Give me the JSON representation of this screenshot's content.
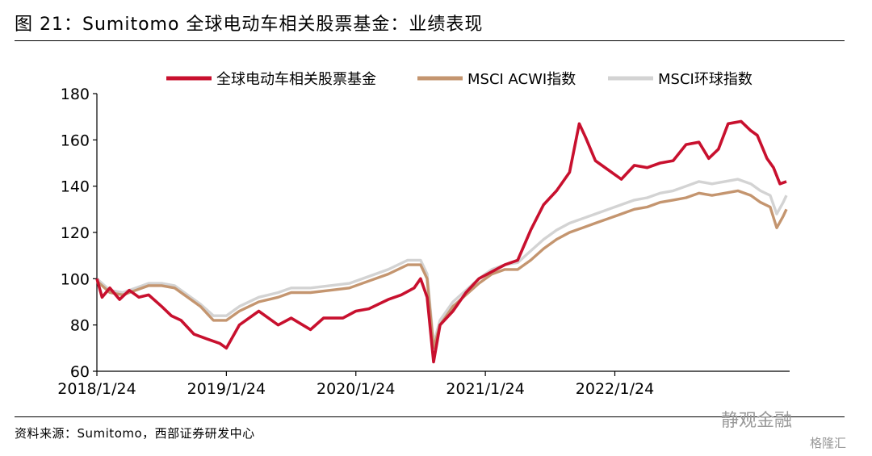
{
  "figure": {
    "title": "图 21：Sumitomo 全球电动车相关股票基金：业绩表现",
    "source": "资料来源：Sumitomo，西部证券研发中心",
    "watermark": "静观金融",
    "watermark2": "格隆汇"
  },
  "chart_data": {
    "type": "line",
    "x_ticks": [
      "2018/1/24",
      "2019/1/24",
      "2020/1/24",
      "2021/1/24",
      "2022/1/24"
    ],
    "y_ticks": [
      "60",
      "80",
      "100",
      "120",
      "140",
      "160",
      "180"
    ],
    "ylim": [
      60,
      180
    ],
    "legend_position": "top",
    "series": [
      {
        "name": "全球电动车相关股票基金",
        "color": "#c8102e",
        "values": [
          [
            0,
            100
          ],
          [
            0.08,
            92
          ],
          [
            0.2,
            96
          ],
          [
            0.35,
            91
          ],
          [
            0.5,
            95
          ],
          [
            0.65,
            92
          ],
          [
            0.8,
            93
          ],
          [
            1.0,
            88
          ],
          [
            1.15,
            84
          ],
          [
            1.3,
            82
          ],
          [
            1.5,
            76
          ],
          [
            1.7,
            74
          ],
          [
            1.9,
            72
          ],
          [
            2.0,
            70
          ],
          [
            2.2,
            80
          ],
          [
            2.5,
            86
          ],
          [
            2.8,
            80
          ],
          [
            3.0,
            83
          ],
          [
            3.3,
            78
          ],
          [
            3.5,
            83
          ],
          [
            3.8,
            83
          ],
          [
            4.0,
            86
          ],
          [
            4.2,
            87
          ],
          [
            4.5,
            91
          ],
          [
            4.7,
            93
          ],
          [
            4.9,
            96
          ],
          [
            5.0,
            100
          ],
          [
            5.1,
            92
          ],
          [
            5.2,
            64
          ],
          [
            5.3,
            80
          ],
          [
            5.5,
            86
          ],
          [
            5.7,
            94
          ],
          [
            5.9,
            100
          ],
          [
            6.1,
            103
          ],
          [
            6.3,
            106
          ],
          [
            6.5,
            108
          ],
          [
            6.7,
            121
          ],
          [
            6.9,
            132
          ],
          [
            7.1,
            138
          ],
          [
            7.3,
            146
          ],
          [
            7.45,
            167
          ],
          [
            7.55,
            161
          ],
          [
            7.7,
            151
          ],
          [
            7.9,
            147
          ],
          [
            8.1,
            143
          ],
          [
            8.3,
            149
          ],
          [
            8.5,
            148
          ],
          [
            8.7,
            150
          ],
          [
            8.9,
            151
          ],
          [
            9.1,
            158
          ],
          [
            9.3,
            159
          ],
          [
            9.45,
            152
          ],
          [
            9.6,
            156
          ],
          [
            9.75,
            167
          ],
          [
            9.95,
            168
          ],
          [
            10.1,
            164
          ],
          [
            10.2,
            162
          ],
          [
            10.35,
            152
          ],
          [
            10.45,
            148
          ],
          [
            10.55,
            141
          ],
          [
            10.65,
            142
          ]
        ]
      },
      {
        "name": "MSCI ACWI指数",
        "color": "#c4956f",
        "values": [
          [
            0,
            99
          ],
          [
            0.2,
            94
          ],
          [
            0.4,
            93
          ],
          [
            0.6,
            95
          ],
          [
            0.8,
            97
          ],
          [
            1.0,
            97
          ],
          [
            1.2,
            96
          ],
          [
            1.4,
            92
          ],
          [
            1.6,
            88
          ],
          [
            1.8,
            82
          ],
          [
            2.0,
            82
          ],
          [
            2.2,
            86
          ],
          [
            2.5,
            90
          ],
          [
            2.8,
            92
          ],
          [
            3.0,
            94
          ],
          [
            3.3,
            94
          ],
          [
            3.6,
            95
          ],
          [
            3.9,
            96
          ],
          [
            4.2,
            99
          ],
          [
            4.5,
            102
          ],
          [
            4.8,
            106
          ],
          [
            5.0,
            106
          ],
          [
            5.1,
            100
          ],
          [
            5.2,
            70
          ],
          [
            5.3,
            80
          ],
          [
            5.5,
            88
          ],
          [
            5.7,
            93
          ],
          [
            5.9,
            98
          ],
          [
            6.1,
            102
          ],
          [
            6.3,
            104
          ],
          [
            6.5,
            104
          ],
          [
            6.7,
            108
          ],
          [
            6.9,
            113
          ],
          [
            7.1,
            117
          ],
          [
            7.3,
            120
          ],
          [
            7.5,
            122
          ],
          [
            7.7,
            124
          ],
          [
            7.9,
            126
          ],
          [
            8.1,
            128
          ],
          [
            8.3,
            130
          ],
          [
            8.5,
            131
          ],
          [
            8.7,
            133
          ],
          [
            8.9,
            134
          ],
          [
            9.1,
            135
          ],
          [
            9.3,
            137
          ],
          [
            9.5,
            136
          ],
          [
            9.7,
            137
          ],
          [
            9.9,
            138
          ],
          [
            10.1,
            136
          ],
          [
            10.25,
            133
          ],
          [
            10.4,
            131
          ],
          [
            10.5,
            122
          ],
          [
            10.6,
            127
          ],
          [
            10.65,
            130
          ]
        ]
      },
      {
        "name": "MSCI环球指数",
        "color": "#d3d3d3",
        "values": [
          [
            0,
            100
          ],
          [
            0.2,
            95
          ],
          [
            0.4,
            94
          ],
          [
            0.6,
            96
          ],
          [
            0.8,
            98
          ],
          [
            1.0,
            98
          ],
          [
            1.2,
            97
          ],
          [
            1.4,
            93
          ],
          [
            1.6,
            89
          ],
          [
            1.8,
            84
          ],
          [
            2.0,
            84
          ],
          [
            2.2,
            88
          ],
          [
            2.5,
            92
          ],
          [
            2.8,
            94
          ],
          [
            3.0,
            96
          ],
          [
            3.3,
            96
          ],
          [
            3.6,
            97
          ],
          [
            3.9,
            98
          ],
          [
            4.2,
            101
          ],
          [
            4.5,
            104
          ],
          [
            4.8,
            108
          ],
          [
            5.0,
            108
          ],
          [
            5.1,
            102
          ],
          [
            5.2,
            72
          ],
          [
            5.3,
            82
          ],
          [
            5.5,
            90
          ],
          [
            5.7,
            95
          ],
          [
            5.9,
            100
          ],
          [
            6.1,
            104
          ],
          [
            6.3,
            106
          ],
          [
            6.5,
            107
          ],
          [
            6.7,
            112
          ],
          [
            6.9,
            117
          ],
          [
            7.1,
            121
          ],
          [
            7.3,
            124
          ],
          [
            7.5,
            126
          ],
          [
            7.7,
            128
          ],
          [
            7.9,
            130
          ],
          [
            8.1,
            132
          ],
          [
            8.3,
            134
          ],
          [
            8.5,
            135
          ],
          [
            8.7,
            137
          ],
          [
            8.9,
            138
          ],
          [
            9.1,
            140
          ],
          [
            9.3,
            142
          ],
          [
            9.5,
            141
          ],
          [
            9.7,
            142
          ],
          [
            9.9,
            143
          ],
          [
            10.1,
            141
          ],
          [
            10.25,
            138
          ],
          [
            10.4,
            136
          ],
          [
            10.5,
            128
          ],
          [
            10.6,
            133
          ],
          [
            10.65,
            136
          ]
        ]
      }
    ]
  }
}
